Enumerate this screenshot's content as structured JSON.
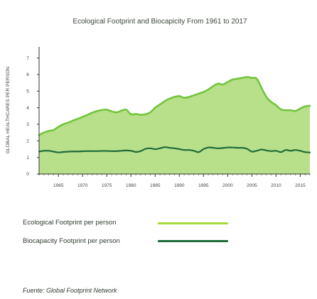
{
  "colors": {
    "footprint_fill": "#b8e08a",
    "footprint_line": "#74c43d",
    "biocapacity_line": "#1f6b3a",
    "axis": "#333333",
    "text": "#3a463a"
  },
  "chart_data": {
    "type": "area",
    "title": "Ecological Footprint and Biocapicity From 1961 to 2017",
    "xlabel": "",
    "ylabel": "GLOBAL HEALTHCARES PER PERSON",
    "xlim": [
      1961,
      2017
    ],
    "ylim": [
      0,
      7.5
    ],
    "x_ticks": [
      1965,
      1970,
      1975,
      1980,
      1985,
      1990,
      1995,
      2000,
      2005,
      2010,
      2015
    ],
    "y_ticks": [
      0,
      1,
      2,
      3,
      4,
      5,
      6,
      7
    ],
    "grid": false,
    "legend": "bottom-left",
    "series": [
      {
        "name": "Ecological Footprint per person",
        "color": "#74c43d",
        "fill": "#b8e08a",
        "x": [
          1961,
          1962,
          1963,
          1964,
          1965,
          1966,
          1967,
          1968,
          1969,
          1970,
          1971,
          1972,
          1973,
          1974,
          1975,
          1976,
          1977,
          1978,
          1979,
          1980,
          1981,
          1982,
          1983,
          1984,
          1985,
          1986,
          1987,
          1988,
          1989,
          1990,
          1991,
          1992,
          1993,
          1994,
          1995,
          1996,
          1997,
          1998,
          1999,
          2000,
          2001,
          2002,
          2003,
          2004,
          2005,
          2006,
          2007,
          2008,
          2009,
          2010,
          2011,
          2012,
          2013,
          2014,
          2015,
          2016,
          2017
        ],
        "values": [
          2.35,
          2.5,
          2.6,
          2.65,
          2.85,
          3.0,
          3.1,
          3.22,
          3.33,
          3.45,
          3.57,
          3.7,
          3.8,
          3.86,
          3.88,
          3.78,
          3.72,
          3.82,
          3.88,
          3.6,
          3.62,
          3.58,
          3.6,
          3.72,
          4.0,
          4.2,
          4.4,
          4.55,
          4.65,
          4.7,
          4.6,
          4.65,
          4.75,
          4.85,
          4.95,
          5.1,
          5.3,
          5.45,
          5.4,
          5.55,
          5.7,
          5.75,
          5.8,
          5.85,
          5.8,
          5.75,
          5.2,
          4.65,
          4.35,
          4.15,
          3.9,
          3.85,
          3.85,
          3.8,
          3.95,
          4.08,
          4.12
        ]
      },
      {
        "name": "Biocapacity Footprint per person",
        "color": "#1f6b3a",
        "x": [
          1961,
          1962,
          1963,
          1964,
          1965,
          1966,
          1967,
          1968,
          1969,
          1970,
          1971,
          1972,
          1973,
          1974,
          1975,
          1976,
          1977,
          1978,
          1979,
          1980,
          1981,
          1982,
          1983,
          1984,
          1985,
          1986,
          1987,
          1988,
          1989,
          1990,
          1991,
          1992,
          1993,
          1994,
          1995,
          1996,
          1997,
          1998,
          1999,
          2000,
          2001,
          2002,
          2003,
          2004,
          2005,
          2006,
          2007,
          2008,
          2009,
          2010,
          2011,
          2012,
          2013,
          2014,
          2015,
          2016,
          2017
        ],
        "values": [
          1.35,
          1.4,
          1.4,
          1.35,
          1.3,
          1.33,
          1.35,
          1.36,
          1.36,
          1.37,
          1.38,
          1.38,
          1.38,
          1.39,
          1.39,
          1.38,
          1.38,
          1.4,
          1.42,
          1.4,
          1.33,
          1.38,
          1.52,
          1.55,
          1.5,
          1.55,
          1.62,
          1.58,
          1.55,
          1.5,
          1.45,
          1.45,
          1.4,
          1.32,
          1.5,
          1.6,
          1.58,
          1.55,
          1.57,
          1.6,
          1.6,
          1.58,
          1.58,
          1.52,
          1.35,
          1.4,
          1.48,
          1.42,
          1.38,
          1.4,
          1.32,
          1.45,
          1.4,
          1.45,
          1.4,
          1.32,
          1.3
        ]
      }
    ]
  },
  "legend": {
    "footprint_label": "Ecological Footprint per person",
    "biocapacity_label": "Biocapacity Footprint per person"
  },
  "source": "Fuente: Global Footprint Network"
}
